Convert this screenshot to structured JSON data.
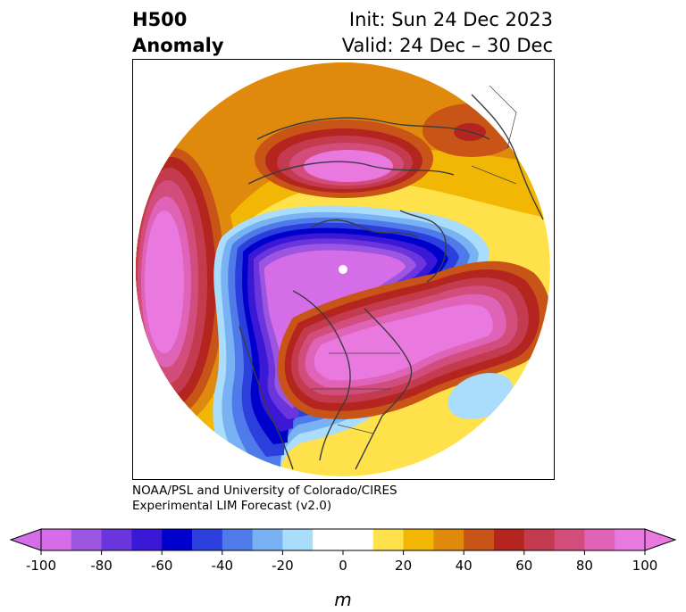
{
  "header": {
    "title_line1": "H500",
    "title_line2": "Anomaly",
    "init_text": "Init: Sun 24 Dec 2023",
    "valid_text": "Valid: 24 Dec – 30 Dec"
  },
  "credit": {
    "line1": "NOAA/PSL and University of Colorado/CIRES",
    "line2": "Experimental LIM Forecast (v2.0)"
  },
  "colorbar": {
    "unit": "m",
    "ticks": [
      "-100",
      "-80",
      "-60",
      "-40",
      "-20",
      "0",
      "20",
      "40",
      "60",
      "80",
      "100"
    ],
    "colors": [
      "#d56de8",
      "#9b55e0",
      "#6a35dc",
      "#3a18d6",
      "#0000cd",
      "#2a3fdc",
      "#4f7bea",
      "#78b2f2",
      "#aadcfb",
      "#ffffff",
      "#ffffff",
      "#ffe24b",
      "#f2b705",
      "#e08a0d",
      "#c85418",
      "#b52520",
      "#c43a4e",
      "#d24d7c",
      "#df63b6",
      "#e978df"
    ],
    "under_color": "#d56de8",
    "over_color": "#e978df"
  }
}
